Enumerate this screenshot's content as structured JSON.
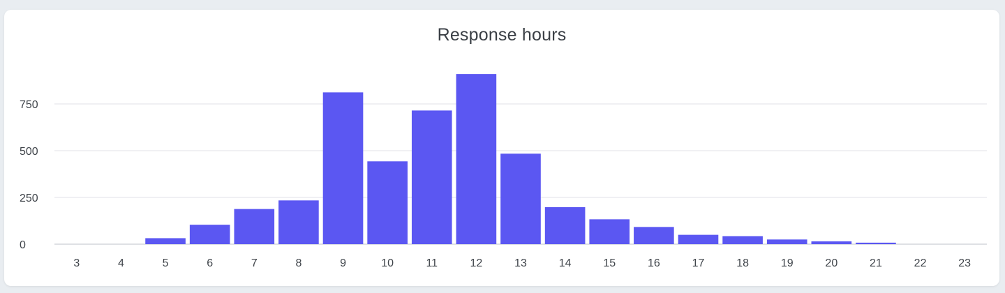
{
  "chart_data": {
    "type": "bar",
    "title": "Response hours",
    "xlabel": "",
    "ylabel": "",
    "categories": [
      "3",
      "4",
      "5",
      "6",
      "7",
      "8",
      "9",
      "10",
      "11",
      "12",
      "13",
      "14",
      "15",
      "16",
      "17",
      "18",
      "19",
      "20",
      "21",
      "22",
      "23"
    ],
    "values": [
      0,
      0,
      32,
      104,
      188,
      234,
      812,
      443,
      715,
      910,
      484,
      198,
      133,
      92,
      50,
      43,
      25,
      15,
      8,
      0,
      0
    ],
    "yticks": [
      0,
      250,
      500,
      750
    ],
    "ylim": [
      0,
      950
    ],
    "grid": true,
    "legend": "none",
    "bar_color": "#5b57f2",
    "grid_color": "#e6e8ec",
    "axis_color": "#c9cdd3"
  }
}
